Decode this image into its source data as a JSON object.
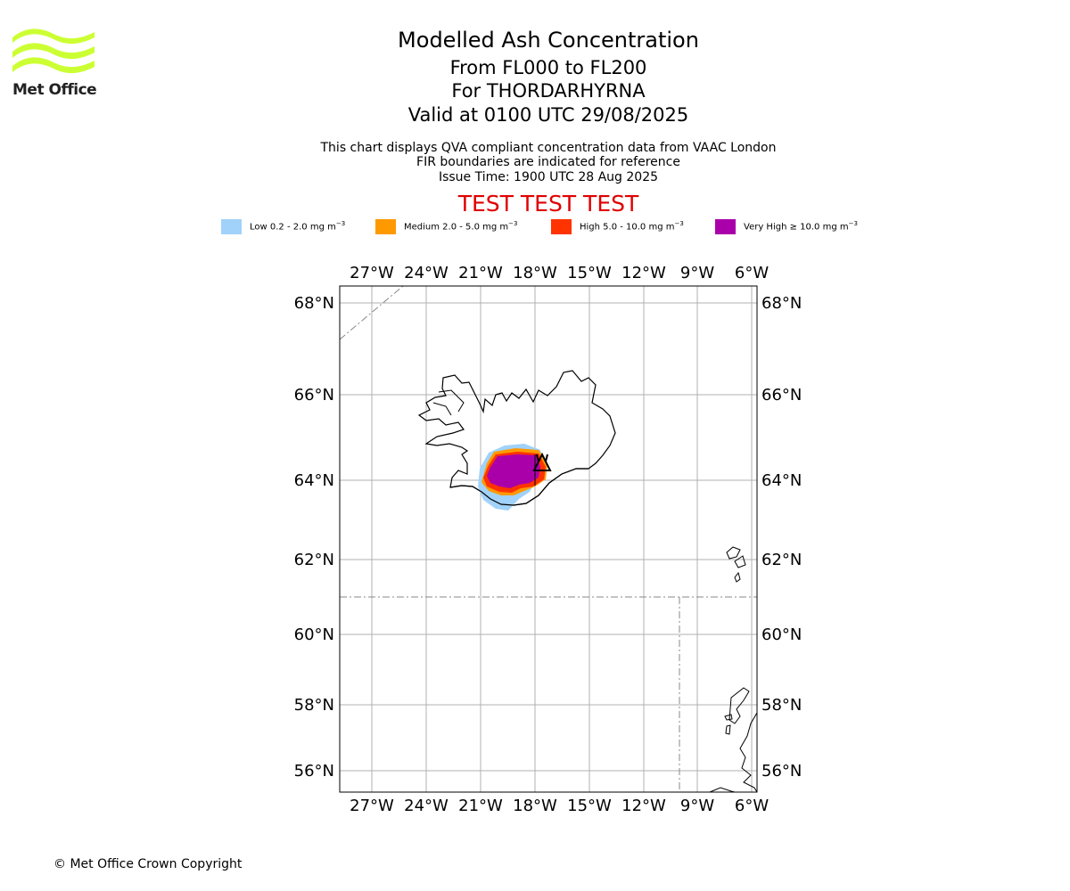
{
  "header": {
    "title": "Modelled Ash Concentration",
    "level_range": "From FL000 to FL200",
    "volcano": "For THORDARHYRNA",
    "valid_time": "Valid at 0100 UTC 29/08/2025",
    "info_line1": "This chart displays QVA compliant concentration data from VAAC London",
    "info_line2": "FIR boundaries are indicated for reference",
    "info_line3": "Issue Time: 1900 UTC 28 Aug 2025",
    "test_banner": "TEST TEST TEST"
  },
  "logo": {
    "text": "Met Office",
    "color": "#ccff33"
  },
  "legend": [
    {
      "label": "Low 0.2 - 2.0 mg m",
      "unit_exp": "−3",
      "color": "#a0d2fa"
    },
    {
      "label": "Medium 2.0 - 5.0 mg m",
      "unit_exp": "−3",
      "color": "#ff9900"
    },
    {
      "label": "High 5.0 - 10.0 mg m",
      "unit_exp": "−3",
      "color": "#ff3300"
    },
    {
      "label": "Very High ≥ 10.0 mg m",
      "unit_exp": "−3",
      "color": "#aa00aa"
    }
  ],
  "map": {
    "lon_ticks": [
      "27°W",
      "24°W",
      "21°W",
      "18°W",
      "15°W",
      "12°W",
      "9°W",
      "6°W"
    ],
    "lat_ticks": [
      "68°N",
      "66°N",
      "64°N",
      "62°N",
      "60°N",
      "58°N",
      "56°N"
    ],
    "volcano_marker": "triangle"
  },
  "footer": {
    "copyright": "© Met Office Crown Copyright"
  }
}
